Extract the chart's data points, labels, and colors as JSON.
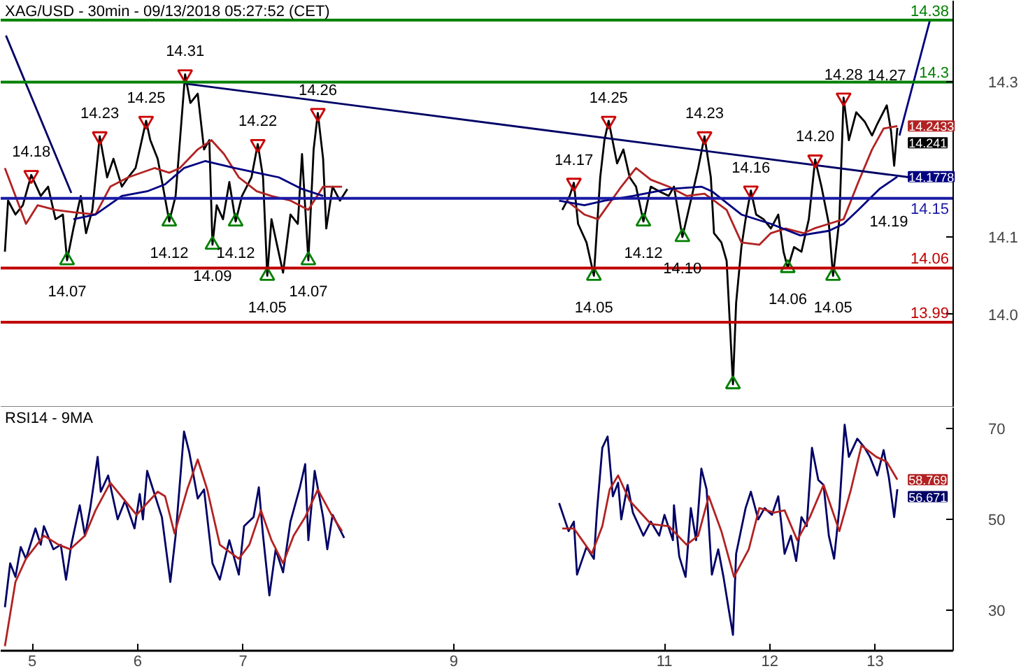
{
  "chart_data": [
    {
      "type": "line",
      "title": "XAG/USD - 30min - 09/13/2018 05:27:52 (CET)",
      "xlim": [
        4.7,
        13.74
      ],
      "ylim": [
        13.88,
        14.405
      ],
      "yticks": [
        {
          "value": 14,
          "label": "14.0"
        },
        14.1,
        14.3
      ],
      "tick_labels": "y",
      "grid": false,
      "series": [
        {
          "color": "#000000",
          "x": [
            4.74,
            4.77,
            4.84,
            4.91,
            4.99,
            5.08,
            5.15,
            5.22,
            5.29,
            5.33,
            5.39,
            5.46,
            5.51,
            5.57,
            5.64,
            5.71,
            5.77,
            5.85,
            5.91,
            5.98,
            6.08,
            6.12,
            6.19,
            6.24,
            6.3,
            6.36,
            6.45,
            6.5,
            6.57,
            6.63,
            6.68,
            6.71,
            6.75,
            6.81,
            6.87,
            6.93,
            6.99,
            7.08,
            7.14,
            7.19,
            7.23,
            7.27,
            7.38,
            7.45,
            7.52,
            7.56,
            7.62,
            7.67,
            7.71,
            7.76,
            7.79,
            7.85,
            7.92,
            7.99,
            9.0,
            10.03,
            10.1,
            10.14,
            10.18,
            10.26,
            10.33,
            10.39,
            10.43,
            10.47,
            10.55,
            10.61,
            10.67,
            10.73,
            10.8,
            10.87,
            10.95,
            11.04,
            11.09,
            11.17,
            11.25,
            11.32,
            11.38,
            11.44,
            11.47,
            11.54,
            11.59,
            11.65,
            11.68,
            11.73,
            11.77,
            11.82,
            11.87,
            11.94,
            12.01,
            12.08,
            12.13,
            12.17,
            12.23,
            12.3,
            12.37,
            12.43,
            12.49,
            12.56,
            12.6,
            12.66,
            12.7,
            12.75,
            12.82,
            12.9,
            12.97,
            13.02,
            13.11,
            13.15,
            13.18,
            13.21
          ],
          "values": [
            14.081,
            14.147,
            14.129,
            14.141,
            14.18,
            14.153,
            14.165,
            14.123,
            14.129,
            14.07,
            14.111,
            14.153,
            14.105,
            14.135,
            14.23,
            14.177,
            14.201,
            14.165,
            14.177,
            14.189,
            14.25,
            14.225,
            14.201,
            14.165,
            14.12,
            14.153,
            14.31,
            14.273,
            14.285,
            14.213,
            14.225,
            14.09,
            14.141,
            14.123,
            14.171,
            14.12,
            14.153,
            14.177,
            14.22,
            14.177,
            14.05,
            14.123,
            14.054,
            14.129,
            14.117,
            14.207,
            14.07,
            14.213,
            14.26,
            14.201,
            14.111,
            14.165,
            14.147,
            14.162,
            null,
            14.135,
            14.153,
            14.17,
            14.117,
            14.093,
            14.05,
            14.177,
            14.225,
            14.25,
            14.195,
            14.213,
            14.177,
            14.165,
            14.12,
            14.165,
            14.159,
            14.153,
            14.165,
            14.1,
            14.147,
            14.189,
            14.23,
            14.177,
            14.105,
            14.093,
            14.069,
            13.91,
            14.015,
            14.087,
            14.123,
            14.16,
            14.129,
            14.123,
            14.111,
            14.129,
            14.081,
            14.06,
            14.087,
            14.081,
            14.123,
            14.2,
            14.165,
            14.117,
            14.05,
            14.123,
            14.28,
            14.225,
            14.261,
            14.249,
            14.231,
            14.246,
            14.27,
            14.237,
            14.192,
            14.241
          ],
          "value_labels": [
            null,
            null,
            null,
            null,
            null,
            null,
            null,
            null,
            null,
            null,
            null,
            null,
            null,
            null,
            null,
            null,
            null,
            null,
            null,
            null,
            null,
            null,
            null,
            null,
            null,
            null,
            null,
            null,
            null,
            null,
            null,
            null,
            null,
            null,
            null,
            null,
            null,
            null,
            null,
            null,
            null,
            null,
            null,
            null,
            null,
            null,
            null,
            null,
            null,
            null,
            null,
            null,
            null,
            null,
            null,
            null,
            null,
            null,
            null,
            null,
            null,
            null,
            null,
            null,
            null,
            null,
            null,
            null,
            null,
            null,
            null,
            null,
            null,
            null,
            null,
            null,
            null,
            null,
            null,
            null,
            null,
            null,
            null,
            null,
            null,
            null,
            null,
            null,
            null,
            null,
            null,
            null,
            null,
            null,
            null,
            null,
            null,
            null,
            null,
            null,
            null,
            null,
            null,
            null,
            null,
            null,
            null,
            null,
            null,
            "14.241"
          ]
        },
        {
          "color": "#b22222",
          "x": [
            4.74,
            4.94,
            5.05,
            5.22,
            5.39,
            5.6,
            5.74,
            5.91,
            6.16,
            6.3,
            6.4,
            6.57,
            6.7,
            6.82,
            6.96,
            7.13,
            7.27,
            7.45,
            7.62,
            7.76,
            7.94,
            9.0,
            10.07,
            10.24,
            10.37,
            10.59,
            10.73,
            10.87,
            11.04,
            11.21,
            11.38,
            11.59,
            11.73,
            11.9,
            12.01,
            12.15,
            12.32,
            12.42,
            12.56,
            12.7,
            12.84,
            12.97,
            13.08,
            13.21
          ],
          "values": [
            14.189,
            14.117,
            14.141,
            14.135,
            14.132,
            14.129,
            14.165,
            14.177,
            14.189,
            14.183,
            14.189,
            14.213,
            14.225,
            14.207,
            14.177,
            14.159,
            14.153,
            14.147,
            14.135,
            14.165,
            14.165,
            null,
            14.147,
            14.129,
            14.123,
            14.165,
            14.189,
            14.174,
            14.165,
            14.153,
            14.156,
            14.135,
            14.093,
            14.09,
            14.105,
            14.111,
            14.105,
            14.111,
            14.117,
            14.123,
            14.171,
            14.213,
            14.24,
            14.2433
          ],
          "value_labels": [
            null,
            null,
            null,
            null,
            null,
            null,
            null,
            null,
            null,
            null,
            null,
            null,
            null,
            null,
            null,
            null,
            null,
            null,
            null,
            null,
            null,
            null,
            null,
            null,
            null,
            null,
            null,
            null,
            null,
            null,
            null,
            null,
            null,
            null,
            null,
            null,
            null,
            null,
            null,
            null,
            null,
            null,
            null,
            "14.2433"
          ]
        },
        {
          "color": "#000080",
          "x": [
            5.39,
            5.6,
            5.85,
            6.09,
            6.26,
            6.44,
            6.64,
            6.92,
            7.13,
            7.34,
            7.56,
            7.76,
            9.0,
            10.0,
            10.24,
            10.43,
            10.7,
            11.04,
            11.35,
            11.45,
            11.73,
            12.01,
            12.29,
            12.56,
            12.7,
            12.84,
            13.04,
            13.21
          ],
          "values": [
            14.123,
            14.129,
            14.153,
            14.159,
            14.168,
            14.189,
            14.198,
            14.189,
            14.183,
            14.177,
            14.162,
            14.153,
            null,
            14.147,
            14.141,
            14.147,
            14.153,
            14.162,
            14.165,
            14.159,
            14.129,
            14.117,
            14.102,
            14.108,
            14.117,
            14.135,
            14.162,
            14.1778
          ],
          "value_labels": [
            null,
            null,
            null,
            null,
            null,
            null,
            null,
            null,
            null,
            null,
            null,
            null,
            null,
            null,
            null,
            null,
            null,
            null,
            null,
            null,
            null,
            null,
            null,
            null,
            null,
            null,
            null,
            "14.1778"
          ]
        },
        {
          "color": "#000066",
          "x": [
            6.45,
            13.33
          ],
          "values": [
            14.298,
            14.177
          ]
        },
        {
          "color": "#000066",
          "x": [
            4.75,
            5.37
          ],
          "values": [
            14.36,
            14.157
          ]
        },
        {
          "color": "#00007f",
          "x": [
            13.23,
            13.52
          ],
          "values": [
            14.231,
            14.38
          ]
        },
        {
          "type": "scatter",
          "color": "#cc0000",
          "x": [
            4.99,
            5.64,
            6.08,
            6.45,
            7.14,
            7.71,
            10.14,
            10.47,
            11.38,
            11.82,
            12.43,
            12.7
          ],
          "values": [
            14.18,
            14.23,
            14.25,
            14.31,
            14.22,
            14.26,
            14.17,
            14.25,
            14.23,
            14.16,
            14.2,
            14.28
          ],
          "value_labels": [
            "14.18",
            "14.23",
            "14.25",
            "14.31",
            "14.22",
            "14.26",
            "14.17",
            "14.25",
            "14.23",
            "14.16",
            "14.20",
            "14.28"
          ]
        },
        {
          "type": "scatter",
          "marker": "triangle",
          "color": "#008000",
          "x": [
            5.33,
            6.3,
            6.71,
            6.93,
            7.23,
            7.62,
            10.33,
            10.8,
            11.17,
            11.65,
            12.17,
            12.6
          ],
          "values": [
            14.07,
            14.12,
            14.09,
            14.12,
            14.05,
            14.07,
            14.05,
            14.12,
            14.1,
            13.91,
            14.06,
            14.05
          ],
          "value_labels": [
            "14.07",
            "14.12",
            "14.09",
            "14.12",
            "14.05",
            "14.07",
            "14.05",
            "14.12",
            "14.10",
            null,
            "14.06",
            "14.05"
          ]
        }
      ],
      "ref_lines": [
        {
          "axis": "y",
          "value": 14.38,
          "label": "14.38",
          "color": "#008000"
        },
        {
          "axis": "y",
          "value": 14.3,
          "label": "14.3",
          "color": "#008000"
        },
        {
          "axis": "y",
          "value": 14.15,
          "label": "14.15",
          "color": "#1a1aa6"
        },
        {
          "axis": "y",
          "value": 14.06,
          "label": "14.06",
          "color": "#c00000"
        },
        {
          "axis": "y",
          "value": 13.99,
          "label": "13.99",
          "color": "#c00000"
        }
      ],
      "annotations": [
        {
          "text": "14.27",
          "x": 13.11,
          "y": 14.27
        },
        "14.19"
      ]
    },
    {
      "type": "line",
      "title": "RSI14 - 9MA",
      "xlim": [
        4.7,
        13.74
      ],
      "xticks": [
        5,
        6,
        7,
        9,
        11,
        12,
        13
      ],
      "ylim": [
        21,
        74.7
      ],
      "yticks": [
        30,
        50,
        70
      ],
      "grid": false,
      "series": [
        {
          "color": "#000066",
          "x": [
            4.74,
            4.79,
            4.84,
            4.89,
            4.94,
            5.03,
            5.08,
            5.11,
            5.2,
            5.27,
            5.32,
            5.37,
            5.45,
            5.5,
            5.55,
            5.62,
            5.65,
            5.72,
            5.81,
            5.88,
            5.97,
            6.02,
            6.05,
            6.09,
            6.16,
            6.23,
            6.31,
            6.36,
            6.44,
            6.49,
            6.57,
            6.63,
            6.71,
            6.78,
            6.87,
            6.96,
            7.01,
            7.1,
            7.15,
            7.19,
            7.25,
            7.31,
            7.38,
            7.45,
            7.54,
            7.59,
            7.62,
            7.68,
            7.76,
            7.8,
            7.85,
            7.96,
            9.0,
            10.0,
            10.09,
            10.14,
            10.17,
            10.26,
            10.33,
            10.36,
            10.41,
            10.46,
            10.51,
            10.56,
            10.59,
            10.65,
            10.7,
            10.8,
            10.87,
            10.95,
            11.0,
            11.08,
            11.09,
            11.14,
            11.2,
            11.25,
            11.3,
            11.35,
            11.4,
            11.45,
            11.51,
            11.56,
            11.61,
            11.65,
            11.68,
            11.77,
            11.82,
            11.89,
            11.95,
            12.02,
            12.08,
            12.14,
            12.2,
            12.25,
            12.3,
            12.35,
            12.4,
            12.46,
            12.51,
            12.56,
            12.61,
            12.66,
            12.71,
            12.75,
            12.83,
            12.9,
            12.95,
            13.02,
            13.08,
            13.13,
            13.18,
            13.21
          ],
          "values": [
            30.6,
            40.3,
            37.3,
            43.9,
            41.3,
            48.0,
            44.4,
            48.5,
            43.4,
            44.4,
            36.7,
            44.4,
            53.1,
            46.4,
            52.5,
            63.8,
            56.1,
            59.7,
            50.0,
            54.1,
            48.0,
            55.6,
            50.0,
            60.7,
            55.6,
            50.5,
            36.2,
            46.4,
            69.4,
            64.8,
            54.6,
            56.6,
            40.3,
            36.7,
            45.4,
            37.8,
            48.5,
            50.5,
            57.1,
            46.4,
            33.2,
            43.4,
            38.3,
            49.5,
            57.1,
            62.2,
            45.4,
            60.7,
            50.5,
            43.4,
            51.0,
            45.9,
            null,
            53.6,
            47.4,
            49.5,
            37.8,
            43.9,
            41.3,
            52.0,
            65.8,
            68.3,
            55.1,
            58.1,
            50.0,
            57.6,
            51.5,
            46.4,
            49.5,
            46.4,
            51.0,
            45.4,
            53.1,
            41.8,
            37.3,
            52.5,
            45.4,
            61.2,
            56.6,
            37.8,
            43.4,
            37.3,
            30.1,
            24.5,
            42.4,
            52.5,
            56.1,
            50.0,
            52.5,
            51.0,
            55.1,
            42.4,
            46.4,
            40.8,
            50.5,
            48.5,
            65.8,
            58.7,
            57.6,
            46.4,
            41.3,
            52.5,
            70.9,
            63.8,
            67.8,
            65.8,
            63.8,
            59.7,
            65.3,
            59.2,
            50.5,
            56.671
          ],
          "value_labels": [
            null,
            null,
            null,
            null,
            null,
            null,
            null,
            null,
            null,
            null,
            null,
            null,
            null,
            null,
            null,
            null,
            null,
            null,
            null,
            null,
            null,
            null,
            null,
            null,
            null,
            null,
            null,
            null,
            null,
            null,
            null,
            null,
            null,
            null,
            null,
            null,
            null,
            null,
            null,
            null,
            null,
            null,
            null,
            null,
            null,
            null,
            null,
            null,
            null,
            null,
            null,
            null,
            null,
            null,
            null,
            null,
            null,
            null,
            null,
            null,
            null,
            null,
            null,
            null,
            null,
            null,
            null,
            null,
            null,
            null,
            null,
            null,
            null,
            null,
            null,
            null,
            null,
            null,
            null,
            null,
            null,
            null,
            null,
            null,
            null,
            null,
            null,
            null,
            null,
            null,
            null,
            null,
            null,
            null,
            null,
            null,
            null,
            null,
            null,
            null,
            null,
            null,
            null,
            null,
            null,
            null,
            null,
            null,
            null,
            null,
            null,
            "56.671"
          ]
        },
        {
          "color": "#b22222",
          "x": [
            4.74,
            4.84,
            4.94,
            5.11,
            5.25,
            5.36,
            5.5,
            5.6,
            5.74,
            5.88,
            5.99,
            6.09,
            6.19,
            6.26,
            6.35,
            6.47,
            6.57,
            6.66,
            6.78,
            6.96,
            7.06,
            7.17,
            7.27,
            7.38,
            7.48,
            7.59,
            7.71,
            7.84,
            7.94,
            9.0,
            10.03,
            10.14,
            10.31,
            10.41,
            10.48,
            10.56,
            10.67,
            10.87,
            11.04,
            11.21,
            11.32,
            11.42,
            11.54,
            11.66,
            11.8,
            11.9,
            12.04,
            12.14,
            12.26,
            12.38,
            12.51,
            12.66,
            12.77,
            12.87,
            13.01,
            13.11,
            13.21
          ],
          "values": [
            22.0,
            36.2,
            41.3,
            46.4,
            44.4,
            43.4,
            46.4,
            52.0,
            58.1,
            54.1,
            51.0,
            53.6,
            56.1,
            55.1,
            46.9,
            56.6,
            63.2,
            56.6,
            44.4,
            41.3,
            44.4,
            52.0,
            45.4,
            40.3,
            46.4,
            50.5,
            56.6,
            51.0,
            47.4,
            null,
            48.0,
            48.0,
            42.4,
            48.5,
            56.6,
            59.7,
            54.1,
            49.0,
            48.5,
            44.4,
            46.4,
            55.1,
            47.4,
            37.3,
            43.4,
            52.5,
            51.5,
            52.0,
            45.4,
            50.5,
            57.6,
            47.4,
            56.6,
            66.3,
            63.8,
            62.7,
            58.769
          ],
          "value_labels": [
            null,
            null,
            null,
            null,
            null,
            null,
            null,
            null,
            null,
            null,
            null,
            null,
            null,
            null,
            null,
            null,
            null,
            null,
            null,
            null,
            null,
            null,
            null,
            null,
            null,
            null,
            null,
            null,
            null,
            null,
            null,
            null,
            null,
            null,
            null,
            null,
            null,
            null,
            null,
            null,
            null,
            null,
            null,
            null,
            null,
            null,
            null,
            null,
            null,
            null,
            null,
            null,
            null,
            null,
            null,
            null,
            "58.769"
          ]
        }
      ]
    }
  ]
}
